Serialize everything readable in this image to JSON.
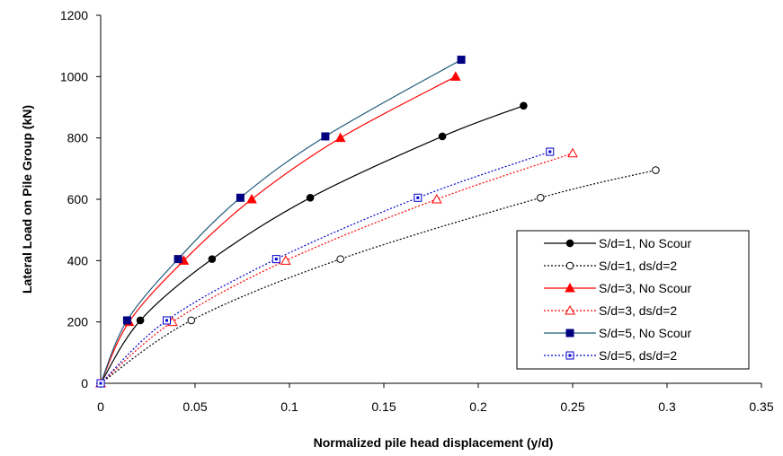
{
  "chart_data": {
    "type": "line",
    "xlabel": "Normalized pile head displacement (y/d)",
    "ylabel": "Lateral Load on Pile Group (kN)",
    "xlim": [
      0,
      0.35
    ],
    "ylim": [
      0,
      1200
    ],
    "x_ticks": [
      "0",
      "0.05",
      "0.1",
      "0.15",
      "0.2",
      "0.25",
      "0.3",
      "0.35"
    ],
    "y_ticks": [
      "0",
      "200",
      "400",
      "600",
      "800",
      "1000",
      "1200"
    ],
    "grid": false,
    "legend_position": "bottom-right",
    "series": [
      {
        "name": "S/d=1, No Scour",
        "color": "#000000",
        "dash": "solid",
        "marker": "circle-filled",
        "x": [
          0,
          0.021,
          0.059,
          0.111,
          0.181,
          0.224
        ],
        "y": [
          0,
          205,
          405,
          605,
          805,
          905
        ]
      },
      {
        "name": "S/d=1, ds/d=2",
        "color": "#000000",
        "dash": "dotted",
        "marker": "circle-open",
        "x": [
          0,
          0.048,
          0.127,
          0.233,
          0.294
        ],
        "y": [
          0,
          205,
          405,
          605,
          695
        ]
      },
      {
        "name": "S/d=3, No Scour",
        "color": "#ff0000",
        "dash": "solid",
        "marker": "triangle-filled",
        "x": [
          0,
          0.015,
          0.044,
          0.08,
          0.127,
          0.188
        ],
        "y": [
          0,
          200,
          400,
          600,
          800,
          1000
        ]
      },
      {
        "name": "S/d=3, ds/d=2",
        "color": "#ff0000",
        "dash": "dotted",
        "marker": "triangle-open",
        "x": [
          0,
          0.038,
          0.098,
          0.178,
          0.25
        ],
        "y": [
          0,
          200,
          400,
          600,
          750
        ]
      },
      {
        "name": "S/d=5, No Scour",
        "color": "#1f5a7a",
        "marker_color": "#000080",
        "dash": "solid",
        "marker": "square-filled",
        "x": [
          0,
          0.014,
          0.041,
          0.074,
          0.119,
          0.191
        ],
        "y": [
          0,
          205,
          405,
          605,
          805,
          1055
        ]
      },
      {
        "name": "S/d=5, ds/d=2",
        "color": "#0000cc",
        "dash": "dotted",
        "marker": "square-open",
        "x": [
          0,
          0.035,
          0.093,
          0.168,
          0.238
        ],
        "y": [
          0,
          205,
          405,
          605,
          755
        ]
      }
    ]
  }
}
